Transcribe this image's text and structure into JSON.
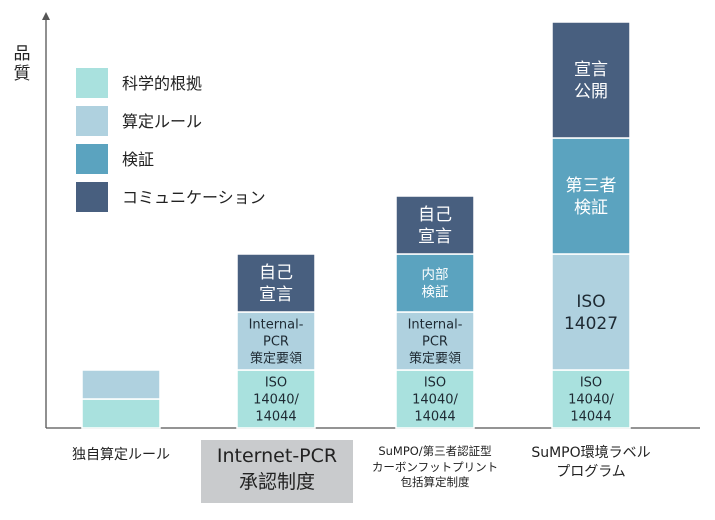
{
  "chart_data": {
    "type": "bar",
    "stacked": true,
    "ylabel": [
      "品",
      "質"
    ],
    "legend": [
      {
        "name": "科学的根拠",
        "color": "#a9e1de"
      },
      {
        "name": "算定ルール",
        "color": "#afd1df"
      },
      {
        "name": "検証",
        "color": "#5ba3bf"
      },
      {
        "name": "コミュニケーション",
        "color": "#485f7f"
      }
    ],
    "categories": [
      {
        "lines": [
          "独自算定ルール"
        ],
        "size": "small",
        "highlight": false
      },
      {
        "lines": [
          "Internet-PCR",
          "承認制度"
        ],
        "size": "large",
        "highlight": true
      },
      {
        "lines": [
          "SuMPO/第三者認証型",
          "カーボンフットプリント",
          "包括算定制度"
        ],
        "size": "tiny",
        "highlight": false
      },
      {
        "lines": [
          "SuMPO環境ラベル",
          "プログラム"
        ],
        "size": "small",
        "highlight": false
      }
    ],
    "bars": [
      {
        "segments": [
          {
            "series": "科学的根拠",
            "value": 1,
            "label": []
          },
          {
            "series": "算定ルール",
            "value": 1,
            "label": []
          }
        ]
      },
      {
        "segments": [
          {
            "series": "科学的根拠",
            "value": 2,
            "label": [
              "ISO",
              "14040/",
              "14044"
            ]
          },
          {
            "series": "算定ルール",
            "value": 2,
            "label": [
              "Internal-",
              "PCR",
              "策定要領"
            ]
          },
          {
            "series": "コミュニケーション",
            "value": 2,
            "label": [
              "自己",
              "宣言"
            ]
          }
        ]
      },
      {
        "segments": [
          {
            "series": "科学的根拠",
            "value": 2,
            "label": [
              "ISO",
              "14040/",
              "14044"
            ]
          },
          {
            "series": "算定ルール",
            "value": 2,
            "label": [
              "Internal-",
              "PCR",
              "策定要領"
            ]
          },
          {
            "series": "検証",
            "value": 2,
            "label": [
              "内部",
              "検証"
            ]
          },
          {
            "series": "コミュニケーション",
            "value": 2,
            "label": [
              "自己",
              "宣言"
            ]
          }
        ]
      },
      {
        "segments": [
          {
            "series": "科学的根拠",
            "value": 2,
            "label": [
              "ISO",
              "14040/",
              "14044"
            ]
          },
          {
            "series": "算定ルール",
            "value": 4,
            "label": [
              "ISO",
              "14027"
            ]
          },
          {
            "series": "検証",
            "value": 4,
            "label": [
              "第三者",
              "検証"
            ]
          },
          {
            "series": "コミュニケーション",
            "value": 4,
            "label": [
              "宣言",
              "公開"
            ]
          }
        ]
      }
    ],
    "ylim": [
      0,
      14
    ]
  }
}
